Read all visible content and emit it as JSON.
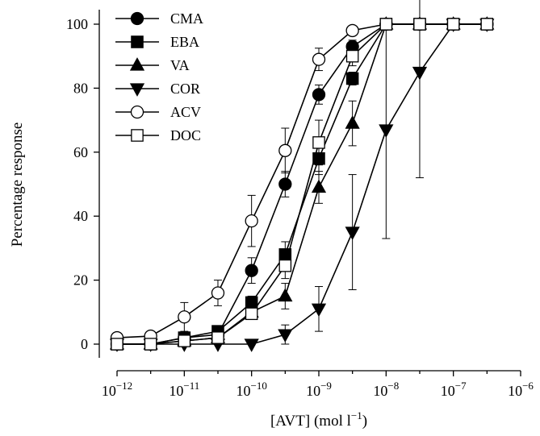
{
  "chart_data": {
    "type": "line",
    "xlabel": {
      "main": "[AVT] (mol l",
      "sup": "−1",
      "tail": ")"
    },
    "ylabel": "Percentage response",
    "xscale": "log",
    "xlim": [
      1e-12,
      1e-06
    ],
    "ylim": [
      0,
      100
    ],
    "x_ticks": [
      {
        "value": 1e-12,
        "base": "10",
        "exp": "−12"
      },
      {
        "value": 1e-11,
        "base": "10",
        "exp": "−11"
      },
      {
        "value": 1e-10,
        "base": "10",
        "exp": "−10"
      },
      {
        "value": 1e-09,
        "base": "10",
        "exp": "−9"
      },
      {
        "value": 1e-08,
        "base": "10",
        "exp": "−8"
      },
      {
        "value": 1e-07,
        "base": "10",
        "exp": "−7"
      },
      {
        "value": 1e-06,
        "base": "10",
        "exp": "−6"
      }
    ],
    "y_ticks": [
      0,
      20,
      40,
      60,
      80,
      100
    ],
    "legend_position": "top-left",
    "x": [
      1e-12,
      3.16e-12,
      1e-11,
      3.16e-11,
      1e-10,
      3.16e-10,
      1e-09,
      3.16e-09,
      1e-08,
      3.16e-08,
      1e-07,
      3.16e-07
    ],
    "series": [
      {
        "name": "CMA",
        "marker": "circle-filled",
        "values": [
          0,
          0,
          2,
          3,
          23,
          50,
          78,
          93,
          100,
          100,
          100,
          100
        ],
        "err": [
          0,
          0,
          0,
          0,
          4,
          4,
          3,
          2,
          0,
          0,
          0,
          0
        ]
      },
      {
        "name": "EBA",
        "marker": "square-filled",
        "values": [
          0,
          0,
          2,
          4,
          13,
          28,
          58,
          83,
          100,
          100,
          100,
          100
        ],
        "err": [
          0,
          0,
          0,
          0,
          2,
          4,
          5,
          2,
          0,
          0,
          0,
          0
        ]
      },
      {
        "name": "VA",
        "marker": "triangle-up-filled",
        "values": [
          0,
          0,
          1,
          2,
          10,
          15,
          49,
          69,
          100,
          100,
          100,
          100
        ],
        "err": [
          0,
          0,
          0,
          0,
          0,
          4,
          5,
          7,
          0,
          0,
          0,
          0
        ]
      },
      {
        "name": "COR",
        "marker": "triangle-down-filled",
        "values": [
          0,
          0,
          0,
          0,
          0,
          3,
          11,
          35,
          67,
          85,
          100,
          100
        ],
        "err": [
          0,
          0,
          0,
          0,
          0,
          3,
          7,
          18,
          34,
          33,
          0,
          0
        ]
      },
      {
        "name": "ACV",
        "marker": "circle-open",
        "values": [
          2,
          2.5,
          8.5,
          16,
          38.5,
          60.5,
          89,
          98,
          100,
          100,
          100,
          100
        ],
        "err": [
          0,
          0,
          4.5,
          4,
          8,
          7,
          3.5,
          0,
          0,
          0,
          0,
          0
        ]
      },
      {
        "name": "DOC",
        "marker": "square-open",
        "values": [
          0,
          0,
          1,
          2,
          9.5,
          24.5,
          63,
          90,
          100,
          100,
          100,
          100
        ],
        "err": [
          0,
          0,
          0,
          0,
          0,
          4,
          7,
          3,
          0,
          0,
          0,
          0
        ]
      }
    ]
  }
}
